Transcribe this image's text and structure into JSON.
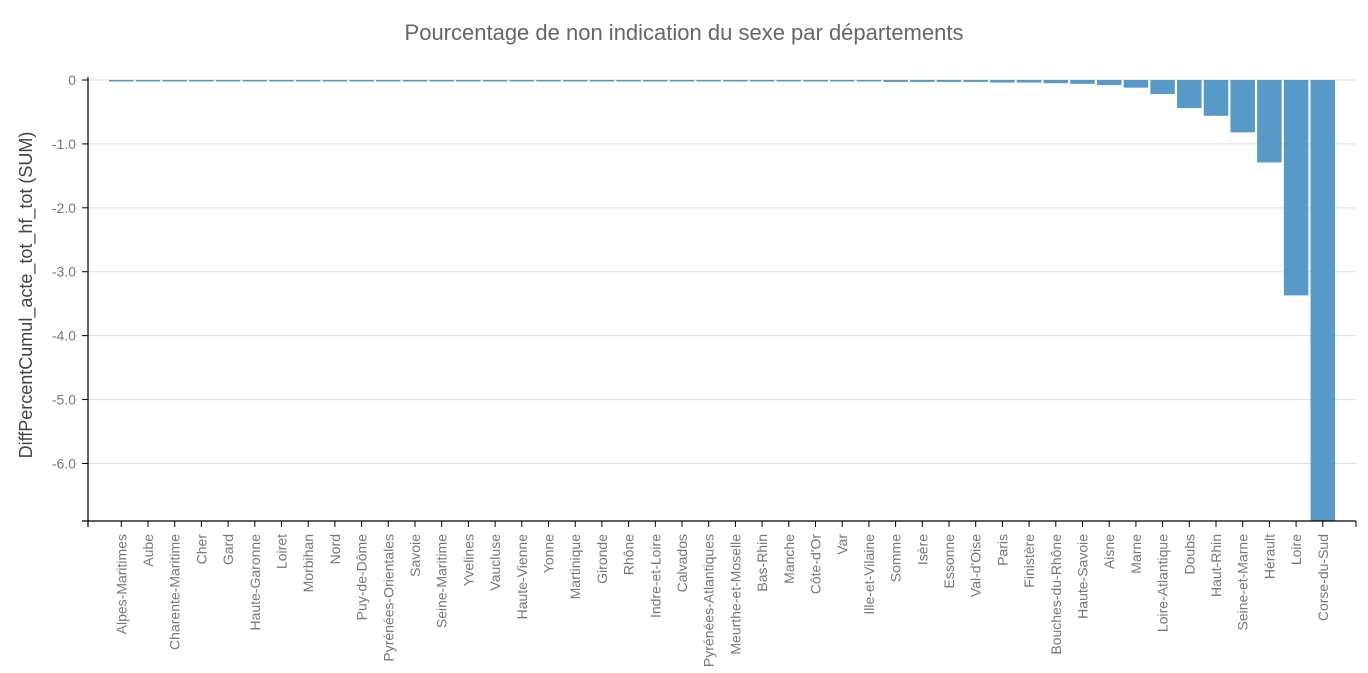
{
  "chart_data": {
    "type": "bar",
    "title": "Pourcentage de non indication du sexe  par départements",
    "ylabel": "DiffPercentCumul_acte_tot_hf_tot (SUM)",
    "xlabel": "",
    "ylim": [
      -6.9,
      0
    ],
    "yticks": [
      0,
      -1.0,
      -2.0,
      -3.0,
      -4.0,
      -5.0,
      -6.0
    ],
    "ytick_labels": [
      "0",
      "-1.0",
      "-2.0",
      "-3.0",
      "-4.0",
      "-5.0",
      "-6.0"
    ],
    "grid": true,
    "bar_color": "#4a90c2",
    "categories": [
      "Alpes-Maritimes",
      "Aube",
      "Charente-Maritime",
      "Cher",
      "Gard",
      "Haute-Garonne",
      "Loiret",
      "Morbihan",
      "Nord",
      "Puy-de-Dôme",
      "Pyrénées-Orientales",
      "Savoie",
      "Seine-Maritime",
      "Yvelines",
      "Vaucluse",
      "Haute-Vienne",
      "Yonne",
      "Martinique",
      "Gironde",
      "Rhône",
      "Indre-et-Loire",
      "Calvados",
      "Pyrénées-Atlantiques",
      "Meurthe-et-Moselle",
      "Bas-Rhin",
      "Manche",
      "Côte-d'Or",
      "Var",
      "Ille-et-Vilaine",
      "Somme",
      "Isère",
      "Essonne",
      "Val-d'Oise",
      "Paris",
      "Finistère",
      "Bouches-du-Rhône",
      "Haute-Savoie",
      "Aisne",
      "Marne",
      "Loire-Atlantique",
      "Doubs",
      "Haut-Rhin",
      "Seine-et-Marne",
      "Hérault",
      "Loire",
      "Corse-du-Sud"
    ],
    "values": [
      -0.01,
      -0.01,
      -0.01,
      -0.01,
      -0.01,
      -0.01,
      -0.01,
      -0.01,
      -0.01,
      -0.01,
      -0.01,
      -0.01,
      -0.01,
      -0.01,
      -0.01,
      -0.01,
      -0.01,
      -0.01,
      -0.01,
      -0.01,
      -0.01,
      -0.01,
      -0.01,
      -0.01,
      -0.01,
      -0.01,
      -0.01,
      -0.01,
      -0.02,
      -0.03,
      -0.03,
      -0.03,
      -0.03,
      -0.04,
      -0.04,
      -0.05,
      -0.06,
      -0.08,
      -0.12,
      -0.22,
      -0.44,
      -0.56,
      -0.82,
      -1.29,
      -3.37,
      -6.9
    ]
  }
}
